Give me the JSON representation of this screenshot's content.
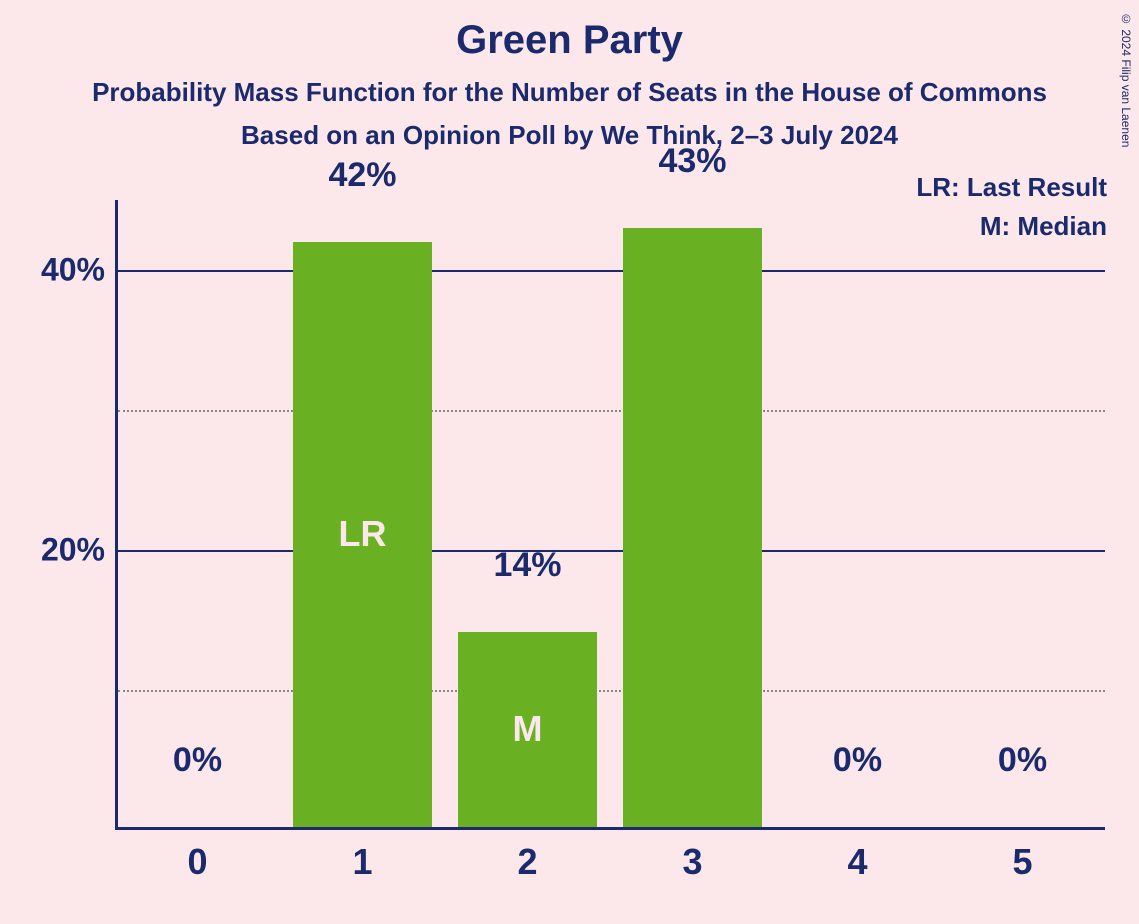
{
  "title": "Green Party",
  "subtitle1": "Probability Mass Function for the Number of Seats in the House of Commons",
  "subtitle2": "Based on an Opinion Poll by We Think, 2–3 July 2024",
  "legend": {
    "lr": "LR: Last Result",
    "m": "M: Median"
  },
  "copyright": "© 2024 Filip van Laenen",
  "chart": {
    "type": "bar",
    "background_color": "#fce8ea",
    "bar_color": "#6ab023",
    "text_color": "#1a2a6c",
    "inner_label_color": "#fce8ea",
    "axis_color": "#1a2a6c",
    "grid_dotted_color": "#888888",
    "y_max_percent": 45,
    "y_ticks_major": [
      20,
      40
    ],
    "y_ticks_minor": [
      10,
      30
    ],
    "y_tick_labels": {
      "20": "20%",
      "40": "40%"
    },
    "categories": [
      "0",
      "1",
      "2",
      "3",
      "4",
      "5"
    ],
    "values_percent": [
      0,
      42,
      14,
      43,
      0,
      0
    ],
    "value_labels": [
      "0%",
      "42%",
      "14%",
      "43%",
      "0%",
      "0%"
    ],
    "inner_labels": {
      "1": "LR",
      "2": "M"
    },
    "title_fontsize": 40,
    "subtitle_fontsize": 26,
    "axis_label_fontsize": 32,
    "value_label_fontsize": 34,
    "xtick_fontsize": 36
  }
}
